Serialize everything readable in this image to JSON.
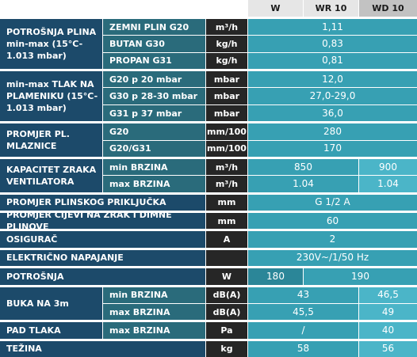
{
  "header": {
    "columns": [
      "W",
      "WR 10",
      "WD 10"
    ]
  },
  "groups": [
    {
      "label": "POTROŠNJA PLINA min-max (15°C-1.013 mbar)",
      "rows": [
        {
          "sub": "ZEMNI PLIN G20",
          "unit": "m³/h",
          "values": [
            "1,11"
          ]
        },
        {
          "sub": "BUTAN G30",
          "unit": "kg/h",
          "values": [
            "0,83"
          ]
        },
        {
          "sub": "PROPAN G31",
          "unit": "kg/h",
          "values": [
            "0,81"
          ]
        }
      ]
    },
    {
      "label": "min-max TLAK NA PLAMENIKU (15°C-1.013 mbar)",
      "rows": [
        {
          "sub": "G20 p 20 mbar",
          "unit": "mbar",
          "values": [
            "12,0"
          ]
        },
        {
          "sub": "G30 p 28-30 mbar",
          "unit": "mbar",
          "values": [
            "27,0-29,0"
          ]
        },
        {
          "sub": "G31 p 37 mbar",
          "unit": "mbar",
          "values": [
            "36,0"
          ]
        }
      ]
    },
    {
      "label": "PROMJER PL. MLAZNICE",
      "rows": [
        {
          "sub": "G20",
          "unit": "mm/100",
          "values": [
            "280"
          ]
        },
        {
          "sub": "G20/G31",
          "unit": "mm/100",
          "values": [
            "170"
          ]
        }
      ]
    },
    {
      "label": "KAPACITET ZRAKA VENTILATORA",
      "rows": [
        {
          "sub": "min BRZINA",
          "unit": "m³/h",
          "values": [
            "850",
            "900"
          ]
        },
        {
          "sub": "max BRZINA",
          "unit": "m³/h",
          "values": [
            "1.04",
            "1.04"
          ]
        }
      ]
    },
    {
      "label": "PROMJER PLINSKOG PRIKLJUČKA",
      "rows": [
        {
          "unit": "mm",
          "values": [
            "G 1/2 A"
          ]
        }
      ]
    },
    {
      "label": "PROMJER CIJEVI NA ZRAK I DIMNE PLINOVE",
      "rows": [
        {
          "unit": "mm",
          "values": [
            "60"
          ]
        }
      ]
    },
    {
      "label": "OSIGURAČ",
      "rows": [
        {
          "unit": "A",
          "values": [
            "2"
          ]
        }
      ]
    },
    {
      "label": "ELEKTRIČNO NAPAJANJE",
      "rows": [
        {
          "values": [
            "230V~/1/50 Hz"
          ]
        }
      ]
    },
    {
      "label": "POTROŠNJA",
      "rows": [
        {
          "unit": "W",
          "values": [
            "180",
            "190"
          ]
        }
      ]
    },
    {
      "label": "BUKA NA 3m",
      "rows": [
        {
          "sub": "min BRZINA",
          "unit": "dB(A)",
          "values": [
            "43",
            "46,5"
          ]
        },
        {
          "sub": "max BRZINA",
          "unit": "dB(A)",
          "values": [
            "45,5",
            "49"
          ]
        }
      ]
    },
    {
      "label": "PAD TLAKA",
      "rows": [
        {
          "sub": "max BRZINA",
          "unit": "Pa",
          "values": [
            "/",
            "40"
          ]
        }
      ]
    },
    {
      "label": "TEŽINA",
      "rows": [
        {
          "unit": "kg",
          "values": [
            "58",
            "56"
          ]
        }
      ]
    }
  ]
}
